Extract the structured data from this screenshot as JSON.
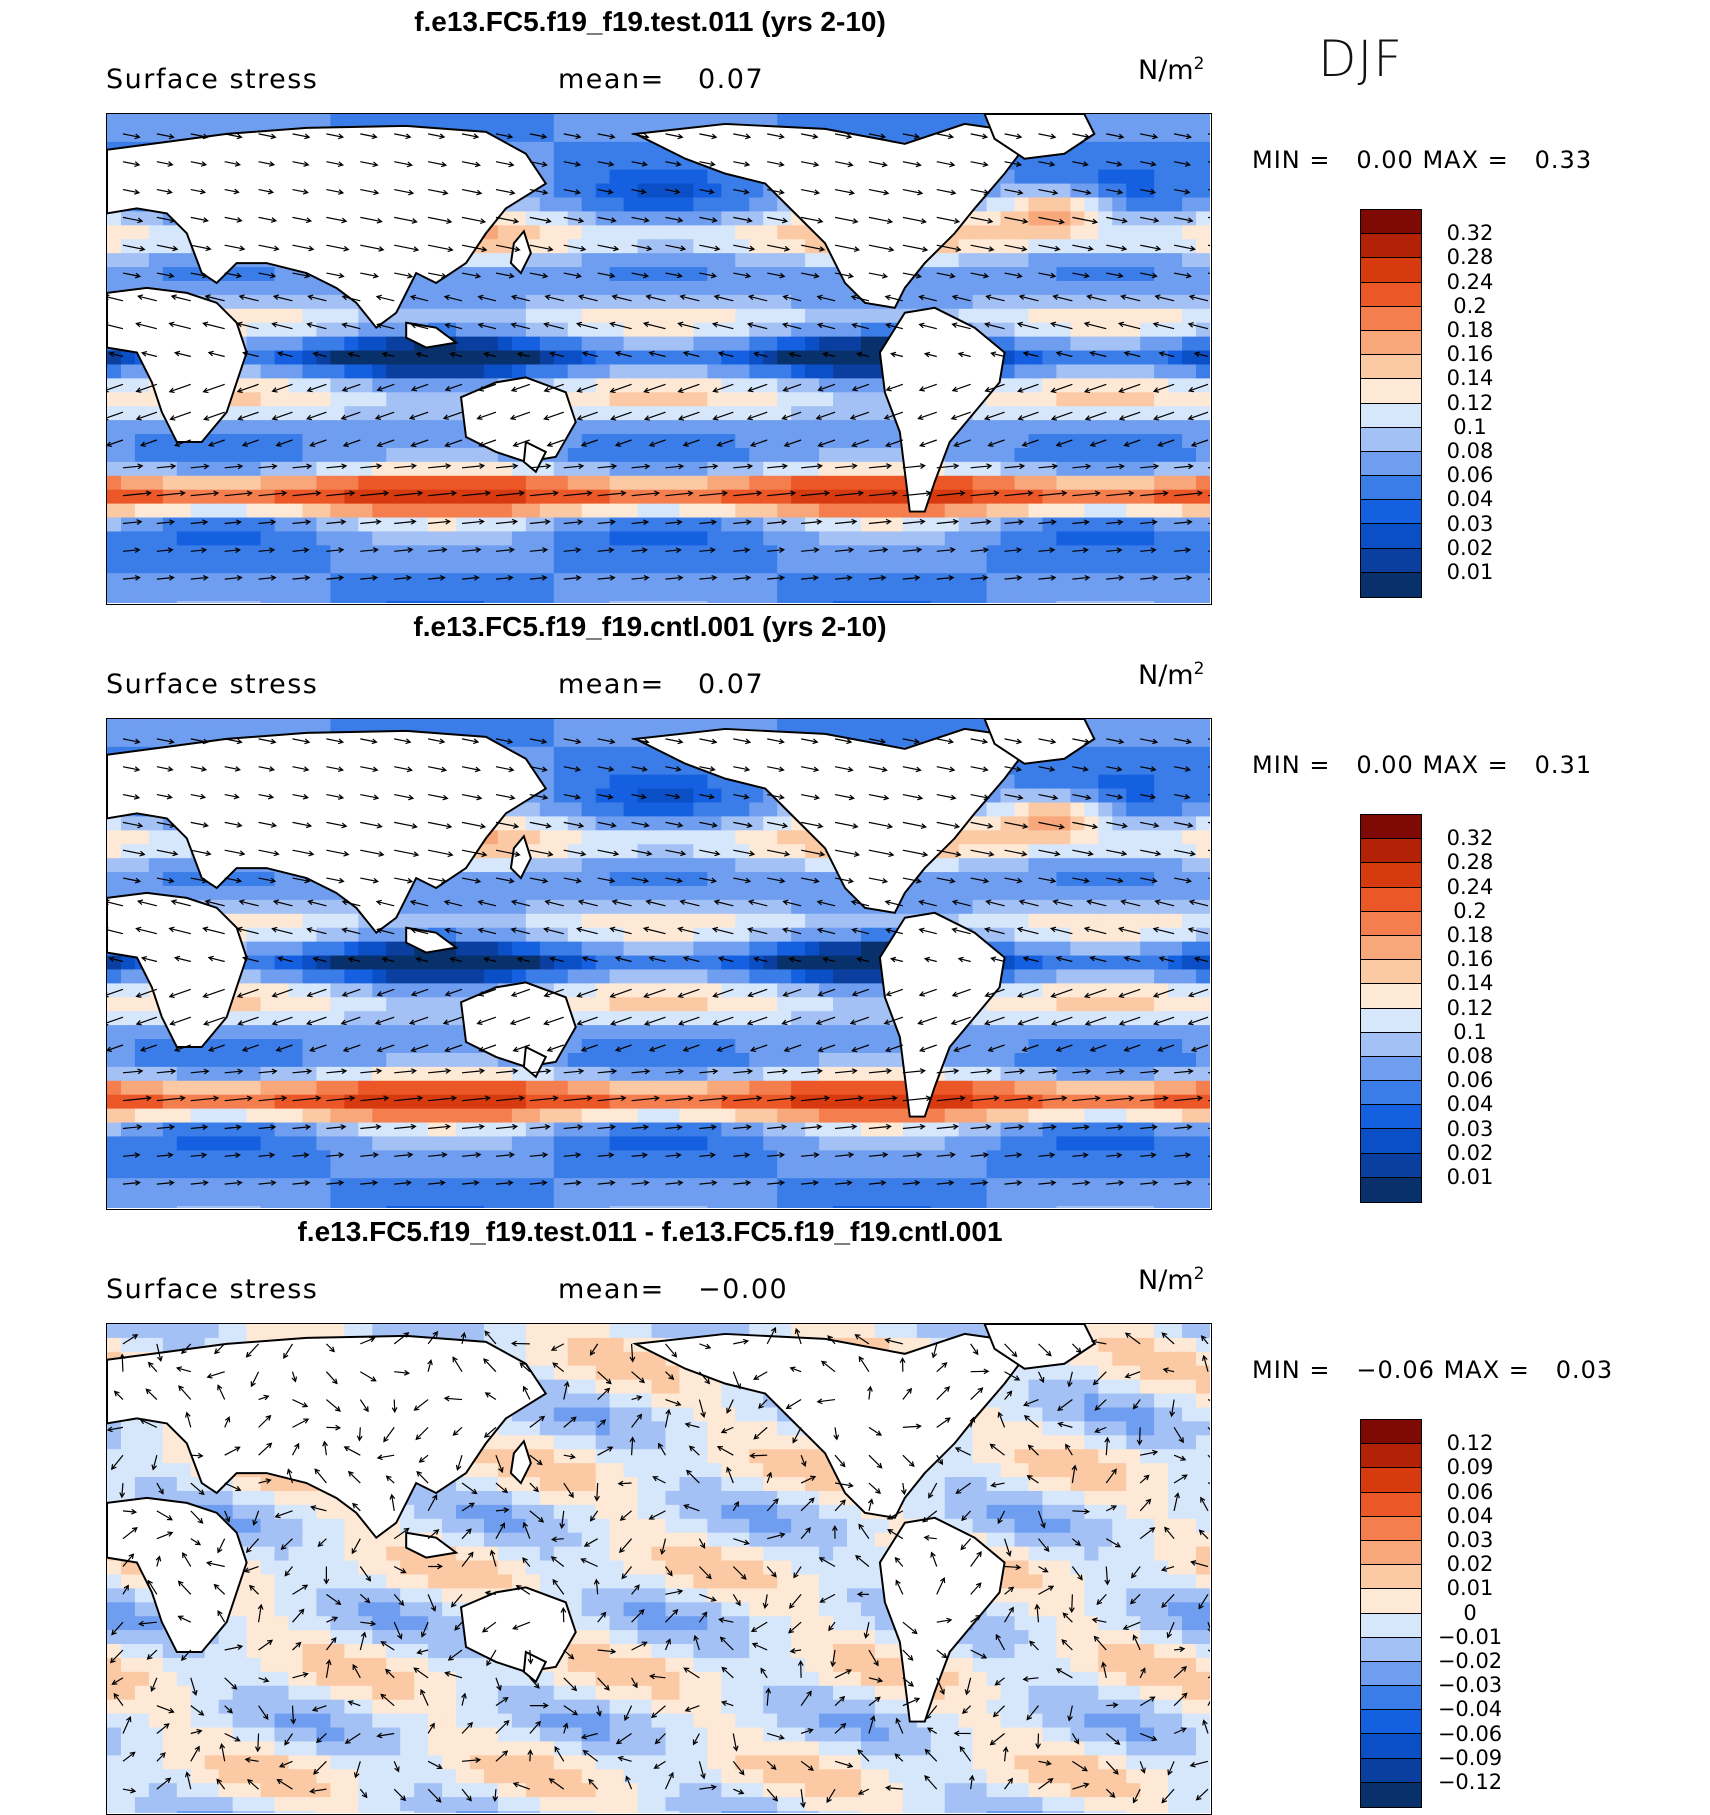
{
  "season": "DJF",
  "colors": {
    "abs": [
      "#08306b",
      "#0a3fa0",
      "#0b4fc6",
      "#1460e0",
      "#3a7de8",
      "#6f9ef0",
      "#a4c1f5",
      "#d6e6fb",
      "#fde9d6",
      "#fbc9a4",
      "#f8a77a",
      "#f47e4e",
      "#ec5728",
      "#d83a10",
      "#b32207",
      "#7f0a05"
    ],
    "diff": [
      "#08306b",
      "#0a3fa0",
      "#0b4fc6",
      "#1460e0",
      "#3a7de8",
      "#6f9ef0",
      "#a4c1f5",
      "#d6e6fb",
      "#fde9d6",
      "#fbc9a4",
      "#f8a77a",
      "#f47e4e",
      "#ec5728",
      "#d83a10",
      "#b32207",
      "#7f0a05"
    ],
    "land": "#ffffff",
    "coast": "#000000"
  },
  "panels": [
    {
      "title": "f.e13.FC5.f19_f19.test.011 (yrs 2-10)",
      "variable": "Surface stress",
      "mean_label": "mean=",
      "mean_value": "0.07",
      "units": "N/m",
      "units_sup": "2",
      "min_label": "MIN =",
      "min_value": "0.00",
      "max_label": "MAX =",
      "max_value": "0.33",
      "kind": "abs",
      "levels": [
        "0.32",
        "0.28",
        "0.24",
        "0.2",
        "0.18",
        "0.16",
        "0.14",
        "0.12",
        "0.1",
        "0.08",
        "0.06",
        "0.04",
        "0.03",
        "0.02",
        "0.01"
      ]
    },
    {
      "title": "f.e13.FC5.f19_f19.cntl.001 (yrs 2-10)",
      "variable": "Surface stress",
      "mean_label": "mean=",
      "mean_value": "0.07",
      "units": "N/m",
      "units_sup": "2",
      "min_label": "MIN =",
      "min_value": "0.00",
      "max_label": "MAX =",
      "max_value": "0.31",
      "kind": "abs",
      "levels": [
        "0.32",
        "0.28",
        "0.24",
        "0.2",
        "0.18",
        "0.16",
        "0.14",
        "0.12",
        "0.1",
        "0.08",
        "0.06",
        "0.04",
        "0.03",
        "0.02",
        "0.01"
      ]
    },
    {
      "title": "f.e13.FC5.f19_f19.test.011 - f.e13.FC5.f19_f19.cntl.001",
      "variable": "Surface stress",
      "mean_label": "mean=",
      "mean_value": "−0.00",
      "units": "N/m",
      "units_sup": "2",
      "min_label": "MIN =",
      "min_value": "−0.06",
      "max_label": "MAX =",
      "max_value": "0.03",
      "kind": "diff",
      "levels": [
        "0.12",
        "0.09",
        "0.06",
        "0.04",
        "0.03",
        "0.02",
        "0.01",
        "0",
        "−0.01",
        "−0.02",
        "−0.03",
        "−0.04",
        "−0.06",
        "−0.09",
        "−0.12"
      ]
    }
  ]
}
